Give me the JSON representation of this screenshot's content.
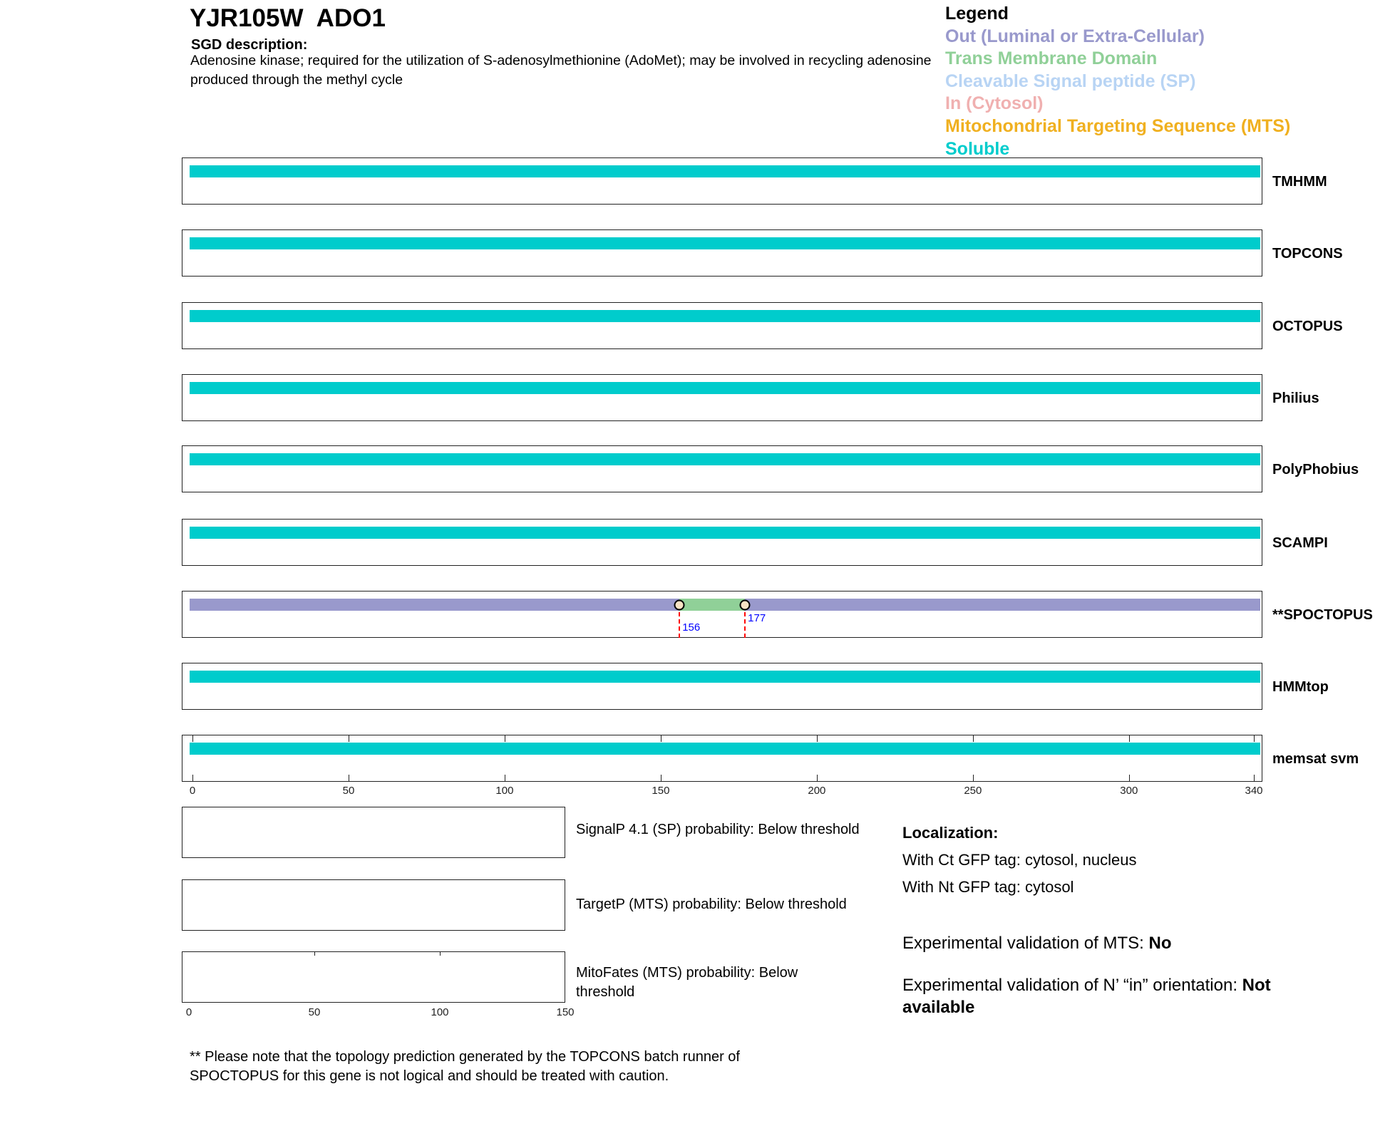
{
  "header": {
    "title": "YJR105W  ADO1",
    "sgd_heading": "SGD description:",
    "sgd_description": "Adenosine kinase; required for the utilization of S-adenosylmethionine (AdoMet); may be involved in recycling adenosine produced through the methyl cycle"
  },
  "legend": {
    "title": "Legend",
    "items": [
      {
        "label": "Out (Luminal or Extra-Cellular)",
        "color": "#9999cc"
      },
      {
        "label": "Trans Membrane Domain",
        "color": "#90d098"
      },
      {
        "label": "Cleavable Signal peptide (SP)",
        "color": "#b8d4f4"
      },
      {
        "label": "In (Cytosol)",
        "color": "#f0b0b0"
      },
      {
        "label": "Mitochondrial Targeting Sequence (MTS)",
        "color": "#f0b020"
      },
      {
        "label": "Soluble",
        "color": "#00cccc"
      }
    ]
  },
  "chart_data": {
    "type": "topology-tracks",
    "protein_length": 340,
    "x_ticks": [
      0,
      50,
      100,
      150,
      200,
      250,
      300,
      340
    ],
    "tracks": [
      {
        "name": "TMHMM",
        "segments": [
          {
            "start": 0,
            "end": 340,
            "type": "Soluble"
          }
        ]
      },
      {
        "name": "TOPCONS",
        "segments": [
          {
            "start": 0,
            "end": 340,
            "type": "Soluble"
          }
        ]
      },
      {
        "name": "OCTOPUS",
        "segments": [
          {
            "start": 0,
            "end": 340,
            "type": "Soluble"
          }
        ]
      },
      {
        "name": "Philius",
        "segments": [
          {
            "start": 0,
            "end": 340,
            "type": "Soluble"
          }
        ]
      },
      {
        "name": "PolyPhobius",
        "segments": [
          {
            "start": 0,
            "end": 340,
            "type": "Soluble"
          }
        ]
      },
      {
        "name": "SCAMPI",
        "segments": [
          {
            "start": 0,
            "end": 340,
            "type": "Soluble"
          }
        ]
      },
      {
        "name": "**SPOCTOPUS",
        "segments": [
          {
            "start": 0,
            "end": 156,
            "type": "Out"
          },
          {
            "start": 156,
            "end": 177,
            "type": "TM"
          },
          {
            "start": 177,
            "end": 340,
            "type": "Out"
          }
        ],
        "markers": [
          "156",
          "177"
        ]
      },
      {
        "name": "HMMtop",
        "segments": [
          {
            "start": 0,
            "end": 340,
            "type": "Soluble"
          }
        ]
      },
      {
        "name": "memsat svm",
        "segments": [
          {
            "start": 0,
            "end": 340,
            "type": "Soluble"
          }
        ]
      }
    ],
    "prob_x_ticks": [
      0,
      50,
      100,
      150
    ]
  },
  "probabilities": [
    "SignalP 4.1 (SP) probability: Below threshold",
    "TargetP (MTS) probability: Below threshold",
    "MitoFates (MTS) probability: Below threshold"
  ],
  "localization": {
    "heading": "Localization:",
    "ct": "With Ct GFP tag: cytosol, nucleus",
    "nt": "With Nt GFP tag: cytosol"
  },
  "validation": {
    "mts_label": "Experimental validation of MTS: ",
    "mts_value": "No",
    "orient_label": "Experimental validation of N’ “in” orientation: ",
    "orient_value": "Not available"
  },
  "note": "** Please note that the topology prediction generated by the TOPCONS batch runner of SPOCTOPUS for this gene is not logical and should be treated with caution."
}
